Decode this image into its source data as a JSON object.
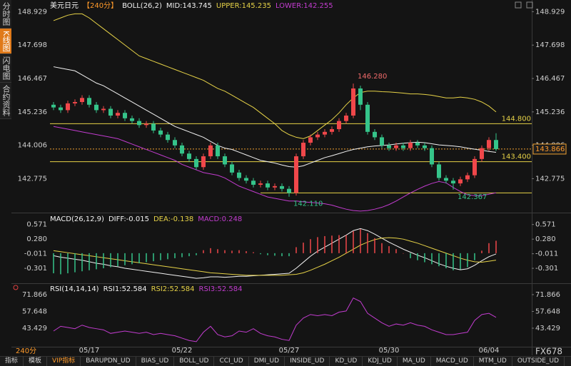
{
  "sidebar": [
    "分时图",
    "K线图",
    "闪电图",
    "合约资料"
  ],
  "period": "240分",
  "brand": "FX678",
  "tabs": [
    "指标",
    "模板",
    "VIP指标",
    "BARUPDN_UD",
    "BIAS_UD",
    "BOLL_UD",
    "CCI_UD",
    "DMI_UD",
    "INSIDE_UD",
    "KD_UD",
    "KDJ_UD",
    "MA_UD",
    "MACD_UD",
    "MTM_UD",
    "OUTSIDE_UD"
  ],
  "chart_data": [
    {
      "type": "candlestick",
      "title": "美元日元",
      "period_label": "【240分】",
      "indicator": "BOLL(26,2)",
      "up_color": "#f0474a",
      "down_color": "#35c48a",
      "categories": [
        null,
        null,
        null,
        null,
        null,
        "05/17",
        null,
        null,
        null,
        null,
        null,
        null,
        null,
        null,
        null,
        null,
        null,
        null,
        "05/22",
        null,
        null,
        null,
        null,
        null,
        null,
        null,
        null,
        null,
        null,
        null,
        null,
        null,
        null,
        "05/27",
        null,
        null,
        null,
        null,
        null,
        null,
        null,
        null,
        null,
        null,
        null,
        null,
        null,
        "05/30",
        null,
        null,
        null,
        null,
        null,
        null,
        null,
        null,
        null,
        null,
        null,
        null,
        null,
        "06/04",
        null
      ],
      "open": [
        145.5,
        145.4,
        145.3,
        145.55,
        145.6,
        145.75,
        145.5,
        145.3,
        145.35,
        145.1,
        145.2,
        145.0,
        144.9,
        144.75,
        144.8,
        144.55,
        144.4,
        144.2,
        144.0,
        143.7,
        143.5,
        143.2,
        143.6,
        144.0,
        143.6,
        143.3,
        143.0,
        142.8,
        142.7,
        142.55,
        142.6,
        142.45,
        142.5,
        142.4,
        142.25,
        143.6,
        144.1,
        144.3,
        144.4,
        144.5,
        144.6,
        144.9,
        145.1,
        146.1,
        145.5,
        144.5,
        144.3,
        144.0,
        143.9,
        144.0,
        143.9,
        144.1,
        144.0,
        143.9,
        143.3,
        142.8,
        142.7,
        142.6,
        142.75,
        142.9,
        143.5,
        143.9,
        144.2
      ],
      "high": [
        145.6,
        145.5,
        145.65,
        145.7,
        145.85,
        145.85,
        145.6,
        145.45,
        145.45,
        145.3,
        145.3,
        145.1,
        145.0,
        144.9,
        144.9,
        144.65,
        144.5,
        144.3,
        144.1,
        143.8,
        143.6,
        143.7,
        144.1,
        144.1,
        143.7,
        143.4,
        143.1,
        142.9,
        142.8,
        142.7,
        142.7,
        142.6,
        142.6,
        142.5,
        143.7,
        144.2,
        144.4,
        144.5,
        144.6,
        144.7,
        145.0,
        145.2,
        146.28,
        146.2,
        145.6,
        144.6,
        144.4,
        144.1,
        144.1,
        144.1,
        144.2,
        144.2,
        144.1,
        144.0,
        143.4,
        142.9,
        142.8,
        142.85,
        143.0,
        143.6,
        144.0,
        144.3,
        144.45
      ],
      "low": [
        145.3,
        145.2,
        145.2,
        145.45,
        145.5,
        145.4,
        145.2,
        145.2,
        145.0,
        145.0,
        144.9,
        144.8,
        144.65,
        144.65,
        144.45,
        144.3,
        144.1,
        143.9,
        143.6,
        143.4,
        143.1,
        143.1,
        143.5,
        143.5,
        143.2,
        142.9,
        142.7,
        142.6,
        142.45,
        142.45,
        142.35,
        142.35,
        142.3,
        142.11,
        142.15,
        143.5,
        144.0,
        144.2,
        144.3,
        144.4,
        144.5,
        144.8,
        145.0,
        145.3,
        144.4,
        144.2,
        143.9,
        143.8,
        143.8,
        143.8,
        143.8,
        143.9,
        143.8,
        143.2,
        142.7,
        142.6,
        142.367,
        142.5,
        142.65,
        142.8,
        143.4,
        143.8,
        143.8
      ],
      "close": [
        145.4,
        145.3,
        145.55,
        145.6,
        145.75,
        145.5,
        145.3,
        145.35,
        145.1,
        145.2,
        145.0,
        144.9,
        144.75,
        144.8,
        144.55,
        144.4,
        144.2,
        144.0,
        143.7,
        143.5,
        143.2,
        143.6,
        144.0,
        143.6,
        143.3,
        143.0,
        142.8,
        142.7,
        142.55,
        142.6,
        142.45,
        142.5,
        142.4,
        142.25,
        143.6,
        144.1,
        144.3,
        144.4,
        144.5,
        144.6,
        144.9,
        145.1,
        146.1,
        145.5,
        144.5,
        144.3,
        144.0,
        143.9,
        144.0,
        143.9,
        144.1,
        144.0,
        143.9,
        143.3,
        142.8,
        142.7,
        142.6,
        142.75,
        142.9,
        143.5,
        143.9,
        144.2,
        143.866
      ],
      "series": [
        {
          "name": "MID:143.745",
          "color": "#f2f2f2",
          "values": [
            146.9,
            146.85,
            146.8,
            146.75,
            146.6,
            146.45,
            146.3,
            146.2,
            146.05,
            145.9,
            145.75,
            145.6,
            145.45,
            145.3,
            145.15,
            145.0,
            144.85,
            144.7,
            144.6,
            144.5,
            144.4,
            144.3,
            144.15,
            144.0,
            143.9,
            143.85,
            143.75,
            143.65,
            143.55,
            143.45,
            143.4,
            143.35,
            143.28,
            143.22,
            143.2,
            143.25,
            143.35,
            143.45,
            143.55,
            143.62,
            143.7,
            143.78,
            143.85,
            143.9,
            143.95,
            143.98,
            144.0,
            144.02,
            144.05,
            144.08,
            144.1,
            144.12,
            144.1,
            144.06,
            144.02,
            144.0,
            143.98,
            143.95,
            143.9,
            143.86,
            143.82,
            143.78,
            143.745
          ]
        },
        {
          "name": "UPPER:145.235",
          "color": "#e6d247",
          "values": [
            148.6,
            148.7,
            148.8,
            148.85,
            148.85,
            148.7,
            148.5,
            148.3,
            148.1,
            147.9,
            147.7,
            147.5,
            147.3,
            147.2,
            147.1,
            147.0,
            146.9,
            146.8,
            146.7,
            146.6,
            146.5,
            146.4,
            146.25,
            146.1,
            146.0,
            145.85,
            145.7,
            145.55,
            145.4,
            145.2,
            145.0,
            144.8,
            144.55,
            144.4,
            144.3,
            144.25,
            144.35,
            144.55,
            144.75,
            144.95,
            145.2,
            145.5,
            145.75,
            145.95,
            146.0,
            146.0,
            145.98,
            145.97,
            145.95,
            145.93,
            145.9,
            145.9,
            145.88,
            145.85,
            145.8,
            145.75,
            145.75,
            145.78,
            145.75,
            145.7,
            145.6,
            145.45,
            145.235
          ]
        },
        {
          "name": "LOWER:142.255",
          "color": "#c23ccf",
          "values": [
            144.7,
            144.65,
            144.6,
            144.55,
            144.5,
            144.45,
            144.4,
            144.35,
            144.3,
            144.25,
            144.15,
            144.05,
            143.95,
            143.85,
            143.75,
            143.65,
            143.55,
            143.45,
            143.3,
            143.2,
            143.1,
            143.0,
            142.95,
            142.9,
            142.8,
            142.65,
            142.5,
            142.4,
            142.3,
            142.2,
            142.1,
            142.05,
            142.0,
            141.95,
            141.95,
            141.92,
            141.9,
            141.88,
            141.85,
            141.8,
            141.72,
            141.65,
            141.6,
            141.58,
            141.6,
            141.65,
            141.72,
            141.82,
            141.95,
            142.1,
            142.25,
            142.38,
            142.5,
            142.6,
            142.67,
            142.62,
            142.45,
            142.3,
            142.18,
            142.15,
            142.15,
            142.2,
            142.255
          ]
        }
      ],
      "ylim": [
        141.55,
        149.15
      ],
      "yticks": [
        148.929,
        147.698,
        146.467,
        145.236,
        144.006,
        142.775
      ],
      "levels": [
        {
          "value": 144.8,
          "label": "144.800"
        },
        {
          "value": 143.4,
          "label": "143.400"
        },
        142.25
      ],
      "level_color": "#e6d247",
      "last_price": 143.866,
      "annotations": [
        {
          "value": 146.28,
          "label": "146.280"
        },
        {
          "value": 142.11,
          "label": "142.110"
        },
        142.367
      ]
    },
    {
      "type": "macd",
      "indicator": "MACD(26,12,9)",
      "up_color": "#f0474a",
      "down_color": "#35c48a",
      "series": [
        {
          "name": "DIFF:-0.015",
          "color": "#f2f2f2",
          "values": [
            -0.05,
            -0.08,
            -0.1,
            -0.12,
            -0.14,
            -0.17,
            -0.2,
            -0.22,
            -0.25,
            -0.27,
            -0.3,
            -0.32,
            -0.34,
            -0.36,
            -0.38,
            -0.4,
            -0.42,
            -0.44,
            -0.46,
            -0.48,
            -0.5,
            -0.49,
            -0.47,
            -0.47,
            -0.48,
            -0.47,
            -0.46,
            -0.46,
            -0.45,
            -0.44,
            -0.43,
            -0.42,
            -0.41,
            -0.4,
            -0.3,
            -0.18,
            -0.06,
            0.04,
            0.12,
            0.2,
            0.28,
            0.36,
            0.45,
            0.49,
            0.45,
            0.38,
            0.3,
            0.22,
            0.15,
            0.08,
            0.02,
            -0.04,
            -0.09,
            -0.15,
            -0.21,
            -0.26,
            -0.3,
            -0.33,
            -0.31,
            -0.24,
            -0.15,
            -0.07,
            -0.015
          ]
        },
        {
          "name": "DEA:-0.138",
          "color": "#e6d247",
          "values": [
            0.05,
            0.03,
            0.01,
            -0.01,
            -0.03,
            -0.05,
            -0.07,
            -0.09,
            -0.11,
            -0.13,
            -0.15,
            -0.17,
            -0.19,
            -0.21,
            -0.23,
            -0.25,
            -0.27,
            -0.29,
            -0.31,
            -0.33,
            -0.35,
            -0.37,
            -0.39,
            -0.4,
            -0.41,
            -0.42,
            -0.43,
            -0.44,
            -0.44,
            -0.44,
            -0.44,
            -0.44,
            -0.44,
            -0.43,
            -0.42,
            -0.39,
            -0.34,
            -0.28,
            -0.22,
            -0.15,
            -0.08,
            0.0,
            0.08,
            0.16,
            0.22,
            0.27,
            0.3,
            0.31,
            0.3,
            0.28,
            0.24,
            0.2,
            0.15,
            0.1,
            0.05,
            0.0,
            -0.05,
            -0.1,
            -0.14,
            -0.17,
            -0.18,
            -0.16,
            -0.138
          ]
        },
        {
          "name": "MACD:0.248",
          "color": "#c23ccf",
          "kind": "histogram",
          "values": [
            -0.4,
            -0.42,
            -0.4,
            -0.38,
            -0.36,
            -0.34,
            -0.32,
            -0.3,
            -0.28,
            -0.26,
            -0.24,
            -0.22,
            -0.2,
            -0.18,
            -0.16,
            -0.14,
            -0.12,
            -0.1,
            -0.08,
            -0.06,
            -0.04,
            0.06,
            0.1,
            0.08,
            0.06,
            0.05,
            0.06,
            0.04,
            0.02,
            -0.02,
            -0.04,
            -0.05,
            -0.06,
            -0.06,
            0.12,
            0.21,
            0.28,
            0.32,
            0.34,
            0.35,
            0.36,
            0.36,
            0.44,
            0.48,
            0.4,
            0.3,
            0.2,
            0.14,
            0.08,
            0.0,
            -0.1,
            -0.14,
            -0.18,
            -0.22,
            -0.26,
            -0.3,
            -0.34,
            -0.32,
            -0.28,
            -0.14,
            0.05,
            0.2,
            0.248
          ]
        }
      ],
      "ylim": [
        -0.57,
        0.78
      ],
      "yticks": [
        0.571,
        {
          "value": 0.28,
          "label": "0.280"
        },
        -0.011,
        -0.301
      ]
    },
    {
      "type": "rsi",
      "indicator": "RSI(14,14,14)",
      "color": "#c23ccf",
      "legend": [
        {
          "name": "RSI1:52.584",
          "color": "#f2f2f2"
        },
        {
          "name": "RSI2:52.584",
          "color": "#e6d247"
        },
        {
          "name": "RSI3:52.584",
          "color": "#c23ccf"
        }
      ],
      "values": [
        41,
        45,
        44,
        43,
        46,
        44,
        43,
        42,
        39,
        40,
        41,
        40,
        39,
        40,
        38,
        39,
        38,
        37,
        35,
        33,
        32,
        40,
        45,
        38,
        36,
        37,
        41,
        40,
        43,
        39,
        37,
        36,
        34,
        33,
        46,
        52,
        55,
        54,
        55,
        54,
        57,
        58,
        69,
        66,
        56,
        52,
        48,
        45,
        47,
        46,
        48,
        46,
        45,
        42,
        40,
        38,
        38,
        39,
        40,
        50,
        55,
        56,
        52.584
      ],
      "ylim": [
        28.3,
        79.7
      ],
      "yticks": [
        71.866,
        57.648,
        43.429
      ]
    }
  ]
}
